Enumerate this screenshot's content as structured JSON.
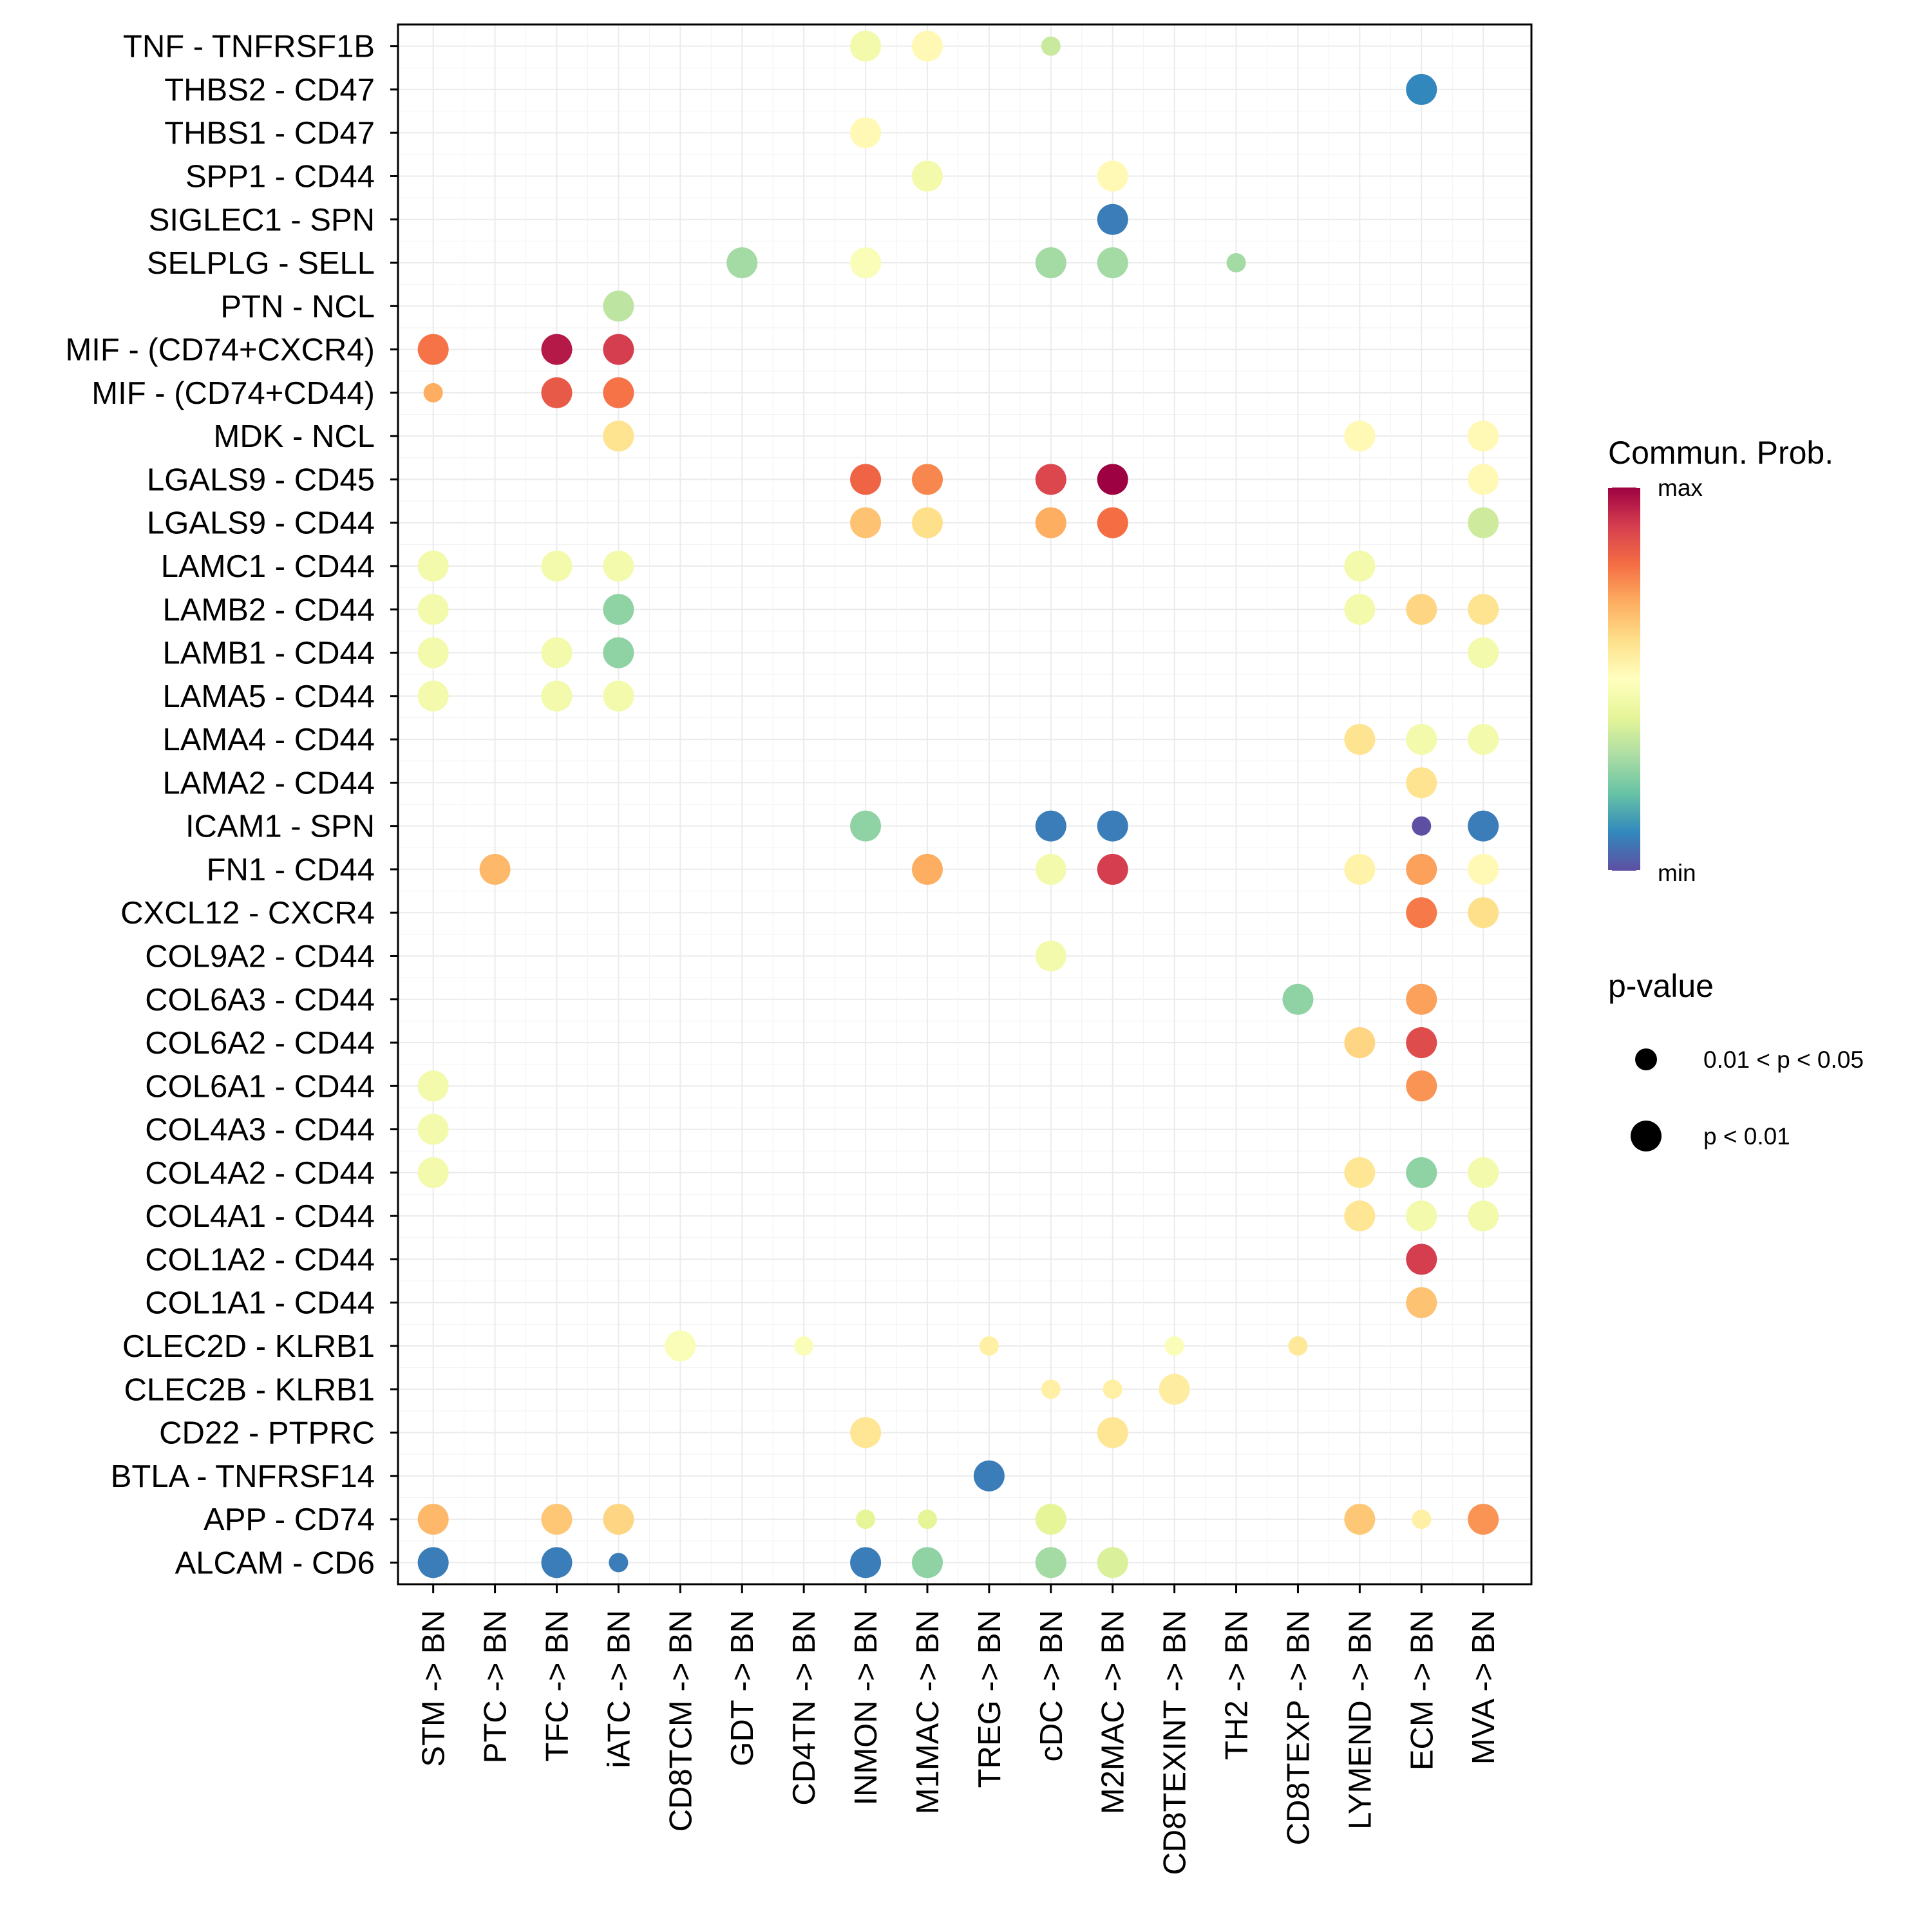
{
  "chart_data": {
    "type": "scatter",
    "subtype": "dot-matrix",
    "title": "",
    "xlabel": "",
    "ylabel": "",
    "x_categories": [
      "STM -> BN",
      "PTC -> BN",
      "TFC -> BN",
      "iATC -> BN",
      "CD8TCM -> BN",
      "GDT -> BN",
      "CD4TN -> BN",
      "INMON -> BN",
      "M1MAC -> BN",
      "TREG -> BN",
      "cDC -> BN",
      "M2MAC -> BN",
      "CD8TEXINT -> BN",
      "TH2 -> BN",
      "CD8TEXP -> BN",
      "LYMEND -> BN",
      "ECM -> BN",
      "MVA -> BN"
    ],
    "y_categories": [
      "TNF - TNFRSF1B",
      "THBS2 - CD47",
      "THBS1 - CD47",
      "SPP1 - CD44",
      "SIGLEC1 - SPN",
      "SELPLG - SELL",
      "PTN - NCL",
      "MIF - (CD74+CXCR4)",
      "MIF - (CD74+CD44)",
      "MDK - NCL",
      "LGALS9 - CD45",
      "LGALS9 - CD44",
      "LAMC1 - CD44",
      "LAMB2 - CD44",
      "LAMB1 - CD44",
      "LAMA5 - CD44",
      "LAMA4 - CD44",
      "LAMA2 - CD44",
      "ICAM1 - SPN",
      "FN1 - CD44",
      "CXCL12 - CXCR4",
      "COL9A2 - CD44",
      "COL6A3 - CD44",
      "COL6A2 - CD44",
      "COL6A1 - CD44",
      "COL4A3 - CD44",
      "COL4A2 - CD44",
      "COL4A1 - CD44",
      "COL1A2 - CD44",
      "COL1A1 - CD44",
      "CLEC2D - KLRB1",
      "CLEC2B - KLRB1",
      "CD22 - PTPRC",
      "BTLA - TNFRSF14",
      "APP - CD74",
      "ALCAM - CD6"
    ],
    "value_note": "prob is relative communication probability on min(0)..max(1) scale estimated from color; p is p-value class",
    "points": [
      {
        "y": "TNF - TNFRSF1B",
        "x": "INMON -> BN",
        "prob": 0.45,
        "p": "p < 0.01"
      },
      {
        "y": "TNF - TNFRSF1B",
        "x": "M1MAC -> BN",
        "prob": 0.52,
        "p": "p < 0.01"
      },
      {
        "y": "TNF - TNFRSF1B",
        "x": "cDC -> BN",
        "prob": 0.35,
        "p": "0.01 < p < 0.05"
      },
      {
        "y": "THBS2 - CD47",
        "x": "ECM -> BN",
        "prob": 0.1,
        "p": "p < 0.01"
      },
      {
        "y": "THBS1 - CD47",
        "x": "INMON -> BN",
        "prob": 0.52,
        "p": "p < 0.01"
      },
      {
        "y": "SPP1 - CD44",
        "x": "M1MAC -> BN",
        "prob": 0.45,
        "p": "p < 0.01"
      },
      {
        "y": "SPP1 - CD44",
        "x": "M2MAC -> BN",
        "prob": 0.52,
        "p": "p < 0.01"
      },
      {
        "y": "SIGLEC1 - SPN",
        "x": "M2MAC -> BN",
        "prob": 0.08,
        "p": "p < 0.01"
      },
      {
        "y": "SELPLG - SELL",
        "x": "GDT -> BN",
        "prob": 0.29,
        "p": "p < 0.01"
      },
      {
        "y": "SELPLG - SELL",
        "x": "INMON -> BN",
        "prob": 0.48,
        "p": "p < 0.01"
      },
      {
        "y": "SELPLG - SELL",
        "x": "cDC -> BN",
        "prob": 0.29,
        "p": "p < 0.01"
      },
      {
        "y": "SELPLG - SELL",
        "x": "M2MAC -> BN",
        "prob": 0.29,
        "p": "p < 0.01"
      },
      {
        "y": "SELPLG - SELL",
        "x": "TH2 -> BN",
        "prob": 0.29,
        "p": "0.01 < p < 0.05"
      },
      {
        "y": "PTN - NCL",
        "x": "iATC -> BN",
        "prob": 0.33,
        "p": "p < 0.01"
      },
      {
        "y": "MIF - (CD74+CXCR4)",
        "x": "STM -> BN",
        "prob": 0.79,
        "p": "p < 0.01"
      },
      {
        "y": "MIF - (CD74+CXCR4)",
        "x": "TFC -> BN",
        "prob": 0.96,
        "p": "p < 0.01"
      },
      {
        "y": "MIF - (CD74+CXCR4)",
        "x": "iATC -> BN",
        "prob": 0.9,
        "p": "p < 0.01"
      },
      {
        "y": "MIF - (CD74+CD44)",
        "x": "STM -> BN",
        "prob": 0.7,
        "p": "0.01 < p < 0.05"
      },
      {
        "y": "MIF - (CD74+CD44)",
        "x": "TFC -> BN",
        "prob": 0.84,
        "p": "p < 0.01"
      },
      {
        "y": "MIF - (CD74+CD44)",
        "x": "iATC -> BN",
        "prob": 0.79,
        "p": "p < 0.01"
      },
      {
        "y": "MDK - NCL",
        "x": "iATC -> BN",
        "prob": 0.59,
        "p": "p < 0.01"
      },
      {
        "y": "MDK - NCL",
        "x": "LYMEND -> BN",
        "prob": 0.52,
        "p": "p < 0.01"
      },
      {
        "y": "MDK - NCL",
        "x": "MVA -> BN",
        "prob": 0.52,
        "p": "p < 0.01"
      },
      {
        "y": "LGALS9 - CD45",
        "x": "INMON -> BN",
        "prob": 0.82,
        "p": "p < 0.01"
      },
      {
        "y": "LGALS9 - CD45",
        "x": "M1MAC -> BN",
        "prob": 0.76,
        "p": "p < 0.01"
      },
      {
        "y": "LGALS9 - CD45",
        "x": "cDC -> BN",
        "prob": 0.88,
        "p": "p < 0.01"
      },
      {
        "y": "LGALS9 - CD45",
        "x": "M2MAC -> BN",
        "prob": 1.0,
        "p": "p < 0.01"
      },
      {
        "y": "LGALS9 - CD45",
        "x": "MVA -> BN",
        "prob": 0.52,
        "p": "p < 0.01"
      },
      {
        "y": "LGALS9 - CD44",
        "x": "INMON -> BN",
        "prob": 0.66,
        "p": "p < 0.01"
      },
      {
        "y": "LGALS9 - CD44",
        "x": "M1MAC -> BN",
        "prob": 0.6,
        "p": "p < 0.01"
      },
      {
        "y": "LGALS9 - CD44",
        "x": "cDC -> BN",
        "prob": 0.7,
        "p": "p < 0.01"
      },
      {
        "y": "LGALS9 - CD44",
        "x": "M2MAC -> BN",
        "prob": 0.8,
        "p": "p < 0.01"
      },
      {
        "y": "LGALS9 - CD44",
        "x": "MVA -> BN",
        "prob": 0.36,
        "p": "p < 0.01"
      },
      {
        "y": "LAMC1 - CD44",
        "x": "STM -> BN",
        "prob": 0.45,
        "p": "p < 0.01"
      },
      {
        "y": "LAMC1 - CD44",
        "x": "TFC -> BN",
        "prob": 0.45,
        "p": "p < 0.01"
      },
      {
        "y": "LAMC1 - CD44",
        "x": "iATC -> BN",
        "prob": 0.45,
        "p": "p < 0.01"
      },
      {
        "y": "LAMC1 - CD44",
        "x": "LYMEND -> BN",
        "prob": 0.45,
        "p": "p < 0.01"
      },
      {
        "y": "LAMB2 - CD44",
        "x": "STM -> BN",
        "prob": 0.45,
        "p": "p < 0.01"
      },
      {
        "y": "LAMB2 - CD44",
        "x": "iATC -> BN",
        "prob": 0.26,
        "p": "p < 0.01"
      },
      {
        "y": "LAMB2 - CD44",
        "x": "LYMEND -> BN",
        "prob": 0.45,
        "p": "p < 0.01"
      },
      {
        "y": "LAMB2 - CD44",
        "x": "ECM -> BN",
        "prob": 0.62,
        "p": "p < 0.01"
      },
      {
        "y": "LAMB2 - CD44",
        "x": "MVA -> BN",
        "prob": 0.59,
        "p": "p < 0.01"
      },
      {
        "y": "LAMB1 - CD44",
        "x": "STM -> BN",
        "prob": 0.45,
        "p": "p < 0.01"
      },
      {
        "y": "LAMB1 - CD44",
        "x": "TFC -> BN",
        "prob": 0.45,
        "p": "p < 0.01"
      },
      {
        "y": "LAMB1 - CD44",
        "x": "iATC -> BN",
        "prob": 0.26,
        "p": "p < 0.01"
      },
      {
        "y": "LAMB1 - CD44",
        "x": "MVA -> BN",
        "prob": 0.45,
        "p": "p < 0.01"
      },
      {
        "y": "LAMA5 - CD44",
        "x": "STM -> BN",
        "prob": 0.45,
        "p": "p < 0.01"
      },
      {
        "y": "LAMA5 - CD44",
        "x": "TFC -> BN",
        "prob": 0.45,
        "p": "p < 0.01"
      },
      {
        "y": "LAMA5 - CD44",
        "x": "iATC -> BN",
        "prob": 0.45,
        "p": "p < 0.01"
      },
      {
        "y": "LAMA4 - CD44",
        "x": "LYMEND -> BN",
        "prob": 0.59,
        "p": "p < 0.01"
      },
      {
        "y": "LAMA4 - CD44",
        "x": "ECM -> BN",
        "prob": 0.45,
        "p": "p < 0.01"
      },
      {
        "y": "LAMA4 - CD44",
        "x": "MVA -> BN",
        "prob": 0.45,
        "p": "p < 0.01"
      },
      {
        "y": "LAMA2 - CD44",
        "x": "ECM -> BN",
        "prob": 0.59,
        "p": "p < 0.01"
      },
      {
        "y": "ICAM1 - SPN",
        "x": "INMON -> BN",
        "prob": 0.26,
        "p": "p < 0.01"
      },
      {
        "y": "ICAM1 - SPN",
        "x": "cDC -> BN",
        "prob": 0.08,
        "p": "p < 0.01"
      },
      {
        "y": "ICAM1 - SPN",
        "x": "M2MAC -> BN",
        "prob": 0.08,
        "p": "p < 0.01"
      },
      {
        "y": "ICAM1 - SPN",
        "x": "ECM -> BN",
        "prob": 0.0,
        "p": "0.01 < p < 0.05"
      },
      {
        "y": "ICAM1 - SPN",
        "x": "MVA -> BN",
        "prob": 0.08,
        "p": "p < 0.01"
      },
      {
        "y": "FN1 - CD44",
        "x": "PTC -> BN",
        "prob": 0.68,
        "p": "p < 0.01"
      },
      {
        "y": "FN1 - CD44",
        "x": "M1MAC -> BN",
        "prob": 0.7,
        "p": "p < 0.01"
      },
      {
        "y": "FN1 - CD44",
        "x": "cDC -> BN",
        "prob": 0.45,
        "p": "p < 0.01"
      },
      {
        "y": "FN1 - CD44",
        "x": "M2MAC -> BN",
        "prob": 0.9,
        "p": "p < 0.01"
      },
      {
        "y": "FN1 - CD44",
        "x": "LYMEND -> BN",
        "prob": 0.54,
        "p": "p < 0.01"
      },
      {
        "y": "FN1 - CD44",
        "x": "ECM -> BN",
        "prob": 0.72,
        "p": "p < 0.01"
      },
      {
        "y": "FN1 - CD44",
        "x": "MVA -> BN",
        "prob": 0.52,
        "p": "p < 0.01"
      },
      {
        "y": "CXCL12 - CXCR4",
        "x": "ECM -> BN",
        "prob": 0.78,
        "p": "p < 0.01"
      },
      {
        "y": "CXCL12 - CXCR4",
        "x": "MVA -> BN",
        "prob": 0.6,
        "p": "p < 0.01"
      },
      {
        "y": "COL9A2 - CD44",
        "x": "cDC -> BN",
        "prob": 0.45,
        "p": "p < 0.01"
      },
      {
        "y": "COL6A3 - CD44",
        "x": "CD8TEXP -> BN",
        "prob": 0.26,
        "p": "p < 0.01"
      },
      {
        "y": "COL6A3 - CD44",
        "x": "ECM -> BN",
        "prob": 0.72,
        "p": "p < 0.01"
      },
      {
        "y": "COL6A2 - CD44",
        "x": "LYMEND -> BN",
        "prob": 0.62,
        "p": "p < 0.01"
      },
      {
        "y": "COL6A2 - CD44",
        "x": "ECM -> BN",
        "prob": 0.87,
        "p": "p < 0.01"
      },
      {
        "y": "COL6A1 - CD44",
        "x": "STM -> BN",
        "prob": 0.45,
        "p": "p < 0.01"
      },
      {
        "y": "COL6A1 - CD44",
        "x": "ECM -> BN",
        "prob": 0.74,
        "p": "p < 0.01"
      },
      {
        "y": "COL4A3 - CD44",
        "x": "STM -> BN",
        "prob": 0.45,
        "p": "p < 0.01"
      },
      {
        "y": "COL4A2 - CD44",
        "x": "STM -> BN",
        "prob": 0.45,
        "p": "p < 0.01"
      },
      {
        "y": "COL4A2 - CD44",
        "x": "LYMEND -> BN",
        "prob": 0.58,
        "p": "p < 0.01"
      },
      {
        "y": "COL4A2 - CD44",
        "x": "ECM -> BN",
        "prob": 0.26,
        "p": "p < 0.01"
      },
      {
        "y": "COL4A2 - CD44",
        "x": "MVA -> BN",
        "prob": 0.45,
        "p": "p < 0.01"
      },
      {
        "y": "COL4A1 - CD44",
        "x": "LYMEND -> BN",
        "prob": 0.58,
        "p": "p < 0.01"
      },
      {
        "y": "COL4A1 - CD44",
        "x": "ECM -> BN",
        "prob": 0.45,
        "p": "p < 0.01"
      },
      {
        "y": "COL4A1 - CD44",
        "x": "MVA -> BN",
        "prob": 0.45,
        "p": "p < 0.01"
      },
      {
        "y": "COL1A2 - CD44",
        "x": "ECM -> BN",
        "prob": 0.9,
        "p": "p < 0.01"
      },
      {
        "y": "COL1A1 - CD44",
        "x": "ECM -> BN",
        "prob": 0.66,
        "p": "p < 0.01"
      },
      {
        "y": "CLEC2D - KLRB1",
        "x": "CD8TCM -> BN",
        "prob": 0.48,
        "p": "p < 0.01"
      },
      {
        "y": "CLEC2D - KLRB1",
        "x": "CD4TN -> BN",
        "prob": 0.48,
        "p": "0.01 < p < 0.05"
      },
      {
        "y": "CLEC2D - KLRB1",
        "x": "TREG -> BN",
        "prob": 0.55,
        "p": "0.01 < p < 0.05"
      },
      {
        "y": "CLEC2D - KLRB1",
        "x": "CD8TEXINT -> BN",
        "prob": 0.48,
        "p": "0.01 < p < 0.05"
      },
      {
        "y": "CLEC2D - KLRB1",
        "x": "CD8TEXP -> BN",
        "prob": 0.57,
        "p": "0.01 < p < 0.05"
      },
      {
        "y": "CLEC2B - KLRB1",
        "x": "cDC -> BN",
        "prob": 0.55,
        "p": "0.01 < p < 0.05"
      },
      {
        "y": "CLEC2B - KLRB1",
        "x": "M2MAC -> BN",
        "prob": 0.55,
        "p": "0.01 < p < 0.05"
      },
      {
        "y": "CLEC2B - KLRB1",
        "x": "CD8TEXINT -> BN",
        "prob": 0.56,
        "p": "p < 0.01"
      },
      {
        "y": "CD22 - PTPRC",
        "x": "INMON -> BN",
        "prob": 0.58,
        "p": "p < 0.01"
      },
      {
        "y": "CD22 - PTPRC",
        "x": "M2MAC -> BN",
        "prob": 0.58,
        "p": "p < 0.01"
      },
      {
        "y": "BTLA - TNFRSF14",
        "x": "TREG -> BN",
        "prob": 0.08,
        "p": "p < 0.01"
      },
      {
        "y": "APP - CD74",
        "x": "STM -> BN",
        "prob": 0.68,
        "p": "p < 0.01"
      },
      {
        "y": "APP - CD74",
        "x": "TFC -> BN",
        "prob": 0.65,
        "p": "p < 0.01"
      },
      {
        "y": "APP - CD74",
        "x": "iATC -> BN",
        "prob": 0.62,
        "p": "p < 0.01"
      },
      {
        "y": "APP - CD74",
        "x": "INMON -> BN",
        "prob": 0.4,
        "p": "0.01 < p < 0.05"
      },
      {
        "y": "APP - CD74",
        "x": "M1MAC -> BN",
        "prob": 0.4,
        "p": "0.01 < p < 0.05"
      },
      {
        "y": "APP - CD74",
        "x": "cDC -> BN",
        "prob": 0.4,
        "p": "p < 0.01"
      },
      {
        "y": "APP - CD74",
        "x": "LYMEND -> BN",
        "prob": 0.65,
        "p": "p < 0.01"
      },
      {
        "y": "APP - CD74",
        "x": "ECM -> BN",
        "prob": 0.55,
        "p": "0.01 < p < 0.05"
      },
      {
        "y": "APP - CD74",
        "x": "MVA -> BN",
        "prob": 0.74,
        "p": "p < 0.01"
      },
      {
        "y": "ALCAM - CD6",
        "x": "STM -> BN",
        "prob": 0.08,
        "p": "p < 0.01"
      },
      {
        "y": "ALCAM - CD6",
        "x": "TFC -> BN",
        "prob": 0.08,
        "p": "p < 0.01"
      },
      {
        "y": "ALCAM - CD6",
        "x": "iATC -> BN",
        "prob": 0.08,
        "p": "0.01 < p < 0.05"
      },
      {
        "y": "ALCAM - CD6",
        "x": "INMON -> BN",
        "prob": 0.08,
        "p": "p < 0.01"
      },
      {
        "y": "ALCAM - CD6",
        "x": "M1MAC -> BN",
        "prob": 0.26,
        "p": "p < 0.01"
      },
      {
        "y": "ALCAM - CD6",
        "x": "cDC -> BN",
        "prob": 0.29,
        "p": "p < 0.01"
      },
      {
        "y": "ALCAM - CD6",
        "x": "M2MAC -> BN",
        "prob": 0.38,
        "p": "p < 0.01"
      }
    ],
    "color_scale": {
      "title": "Commun. Prob.",
      "max_label": "max",
      "min_label": "min",
      "palette": [
        "#5E4FA2",
        "#3288BD",
        "#66C2A5",
        "#ABDDA4",
        "#E6F598",
        "#FFFFBF",
        "#FEE08B",
        "#FDAE61",
        "#F46D43",
        "#D53E4F",
        "#9E0142"
      ]
    },
    "size_legend": {
      "title": "p-value",
      "entries": [
        {
          "label": "0.01 < p < 0.05",
          "size": "small"
        },
        {
          "label": "p < 0.01",
          "size": "large"
        }
      ]
    },
    "grid": true,
    "legend_position": "right"
  }
}
